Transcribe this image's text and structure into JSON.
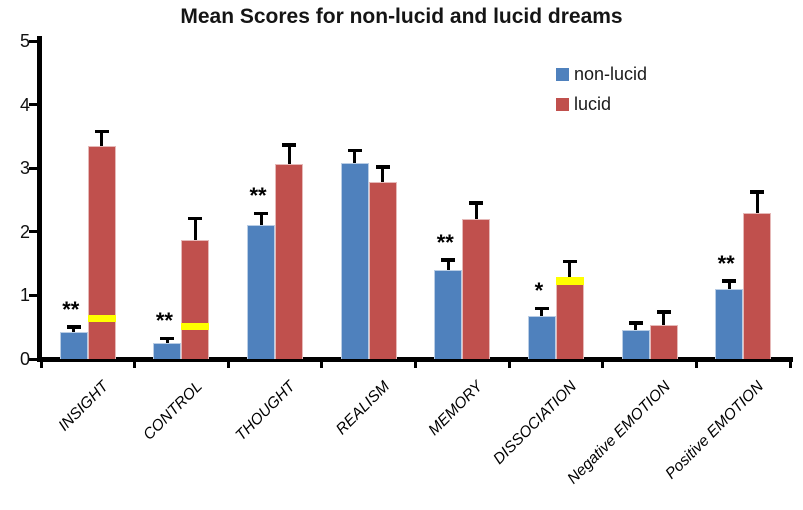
{
  "chart_data": {
    "type": "bar",
    "title": "Mean Scores for non-lucid and lucid dreams",
    "categories": [
      "INSIGHT",
      "CONTROL",
      "THOUGHT",
      "REALISM",
      "MEMORY",
      "DISSOCIATION",
      "Negative EMOTION",
      "Positive EMOTION"
    ],
    "series": [
      {
        "name": "non-lucid",
        "color": "#4F81BD",
        "border_color": "#B9CDE5",
        "values": [
          0.42,
          0.25,
          2.1,
          3.08,
          1.4,
          0.68,
          0.45,
          1.1
        ],
        "errors_up": [
          0.09,
          0.08,
          0.19,
          0.2,
          0.16,
          0.12,
          0.12,
          0.13
        ]
      },
      {
        "name": "lucid",
        "color": "#C0504D",
        "border_color": "#E6B9B8",
        "values": [
          3.35,
          1.87,
          3.06,
          2.78,
          2.2,
          1.29,
          0.54,
          2.3
        ],
        "errors_up": [
          0.23,
          0.34,
          0.31,
          0.24,
          0.26,
          0.25,
          0.2,
          0.33
        ]
      }
    ],
    "significance_markers": [
      "**",
      "**",
      "**",
      "",
      "**",
      "*",
      "",
      "**"
    ],
    "significance_on_series": "non-lucid",
    "highlight_bands": [
      {
        "category_index": 0,
        "series": "lucid",
        "from": 0.58,
        "to": 0.69,
        "color": "#FFFF00"
      },
      {
        "category_index": 1,
        "series": "lucid",
        "from": 0.45,
        "to": 0.57,
        "color": "#FFFF00"
      },
      {
        "category_index": 5,
        "series": "lucid",
        "from": 1.17,
        "to": 1.29,
        "color": "#FFFF00"
      }
    ],
    "y_axis": {
      "min": 0,
      "max": 5,
      "tick_step": 1,
      "tick_labels": [
        "0",
        "1",
        "2",
        "3",
        "4",
        "5"
      ]
    },
    "x_axis": {
      "label_rotation_deg": -45,
      "label_style": "italic"
    },
    "legend": {
      "position": "upper-right-inside",
      "items": [
        "non-lucid",
        "lucid"
      ]
    },
    "grid": false,
    "error_bar_style": "upper-only-black-caps",
    "axis_color": "#000000",
    "background": "#FFFFFF"
  }
}
